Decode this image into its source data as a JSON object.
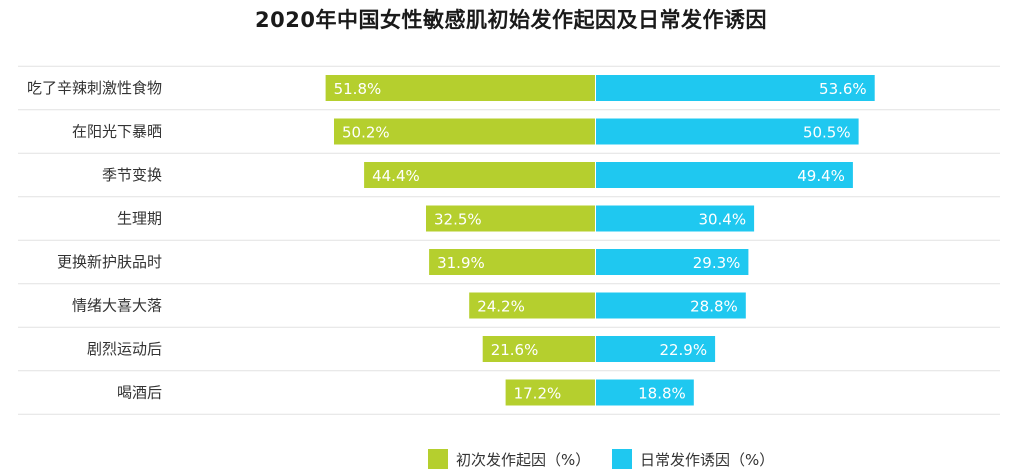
{
  "chart_data": {
    "type": "bar",
    "orientation": "horizontal-diverging",
    "title": "2020年中国女性敏感肌初始发作起因及日常发作诱因",
    "categories": [
      "吃了辛辣刺激性食物",
      "在阳光下暴晒",
      "季节变换",
      "生理期",
      "更换新护肤品时",
      "情绪大喜大落",
      "剧烈运动后",
      "喝酒后"
    ],
    "series": [
      {
        "name": "初次发作起因（%）",
        "color": "#b5cf2e",
        "values": [
          51.8,
          50.2,
          44.4,
          32.5,
          31.9,
          24.2,
          21.6,
          17.2
        ],
        "labels": [
          "51.8%",
          "50.2%",
          "44.4%",
          "32.5%",
          "31.9%",
          "24.2%",
          "21.6%",
          "17.2%"
        ]
      },
      {
        "name": "日常发作诱因（%）",
        "color": "#1fc8f0",
        "values": [
          53.6,
          50.5,
          49.4,
          30.4,
          29.3,
          28.8,
          22.9,
          18.8
        ],
        "labels": [
          "53.6%",
          "50.5%",
          "49.4%",
          "30.4%",
          "29.3%",
          "28.8%",
          "22.9%",
          "18.8%"
        ]
      }
    ],
    "value_unit": "%",
    "xlim": [
      0,
      60
    ],
    "legend_position": "bottom-center",
    "grid": "horizontal separators"
  }
}
